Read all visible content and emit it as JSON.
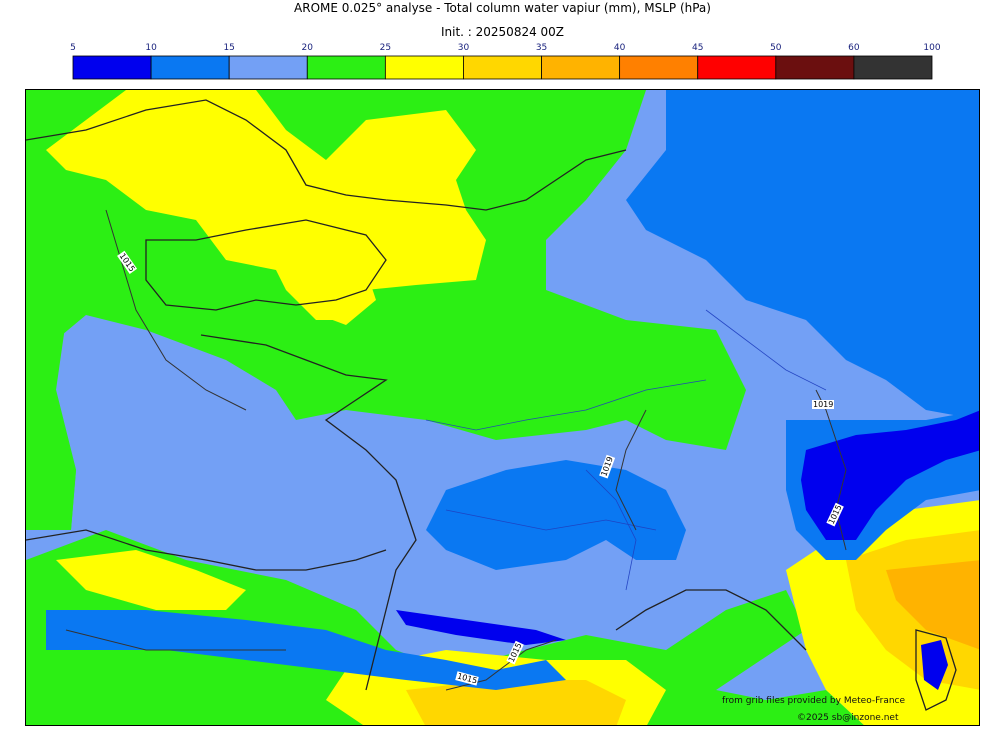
{
  "header": {
    "title": "AROME 0.025° analyse - Total column water vapiur (mm), MSLP (hPa)",
    "subtitle": "Init. : 20250824 00Z"
  },
  "legend": {
    "ticks": [
      "5",
      "10",
      "15",
      "20",
      "25",
      "30",
      "35",
      "40",
      "45",
      "50",
      "60",
      "100"
    ],
    "colors": [
      "#0000ee",
      "#0a78f2",
      "#73a0f5",
      "#2cef14",
      "#ffff00",
      "#ffd700",
      "#ffb300",
      "#ff8000",
      "#ff0000",
      "#6b0f0f",
      "#333333"
    ]
  },
  "map": {
    "isobar_labels": [
      "1015",
      "1019",
      "1019",
      "1015",
      "1015",
      "1015"
    ],
    "colors": {
      "land_outline": "#222222",
      "river": "#1f3fbf"
    }
  },
  "credits": {
    "source": "from grib files provided by Meteo-France",
    "copyright": "©2025 sb@inzone.net"
  }
}
